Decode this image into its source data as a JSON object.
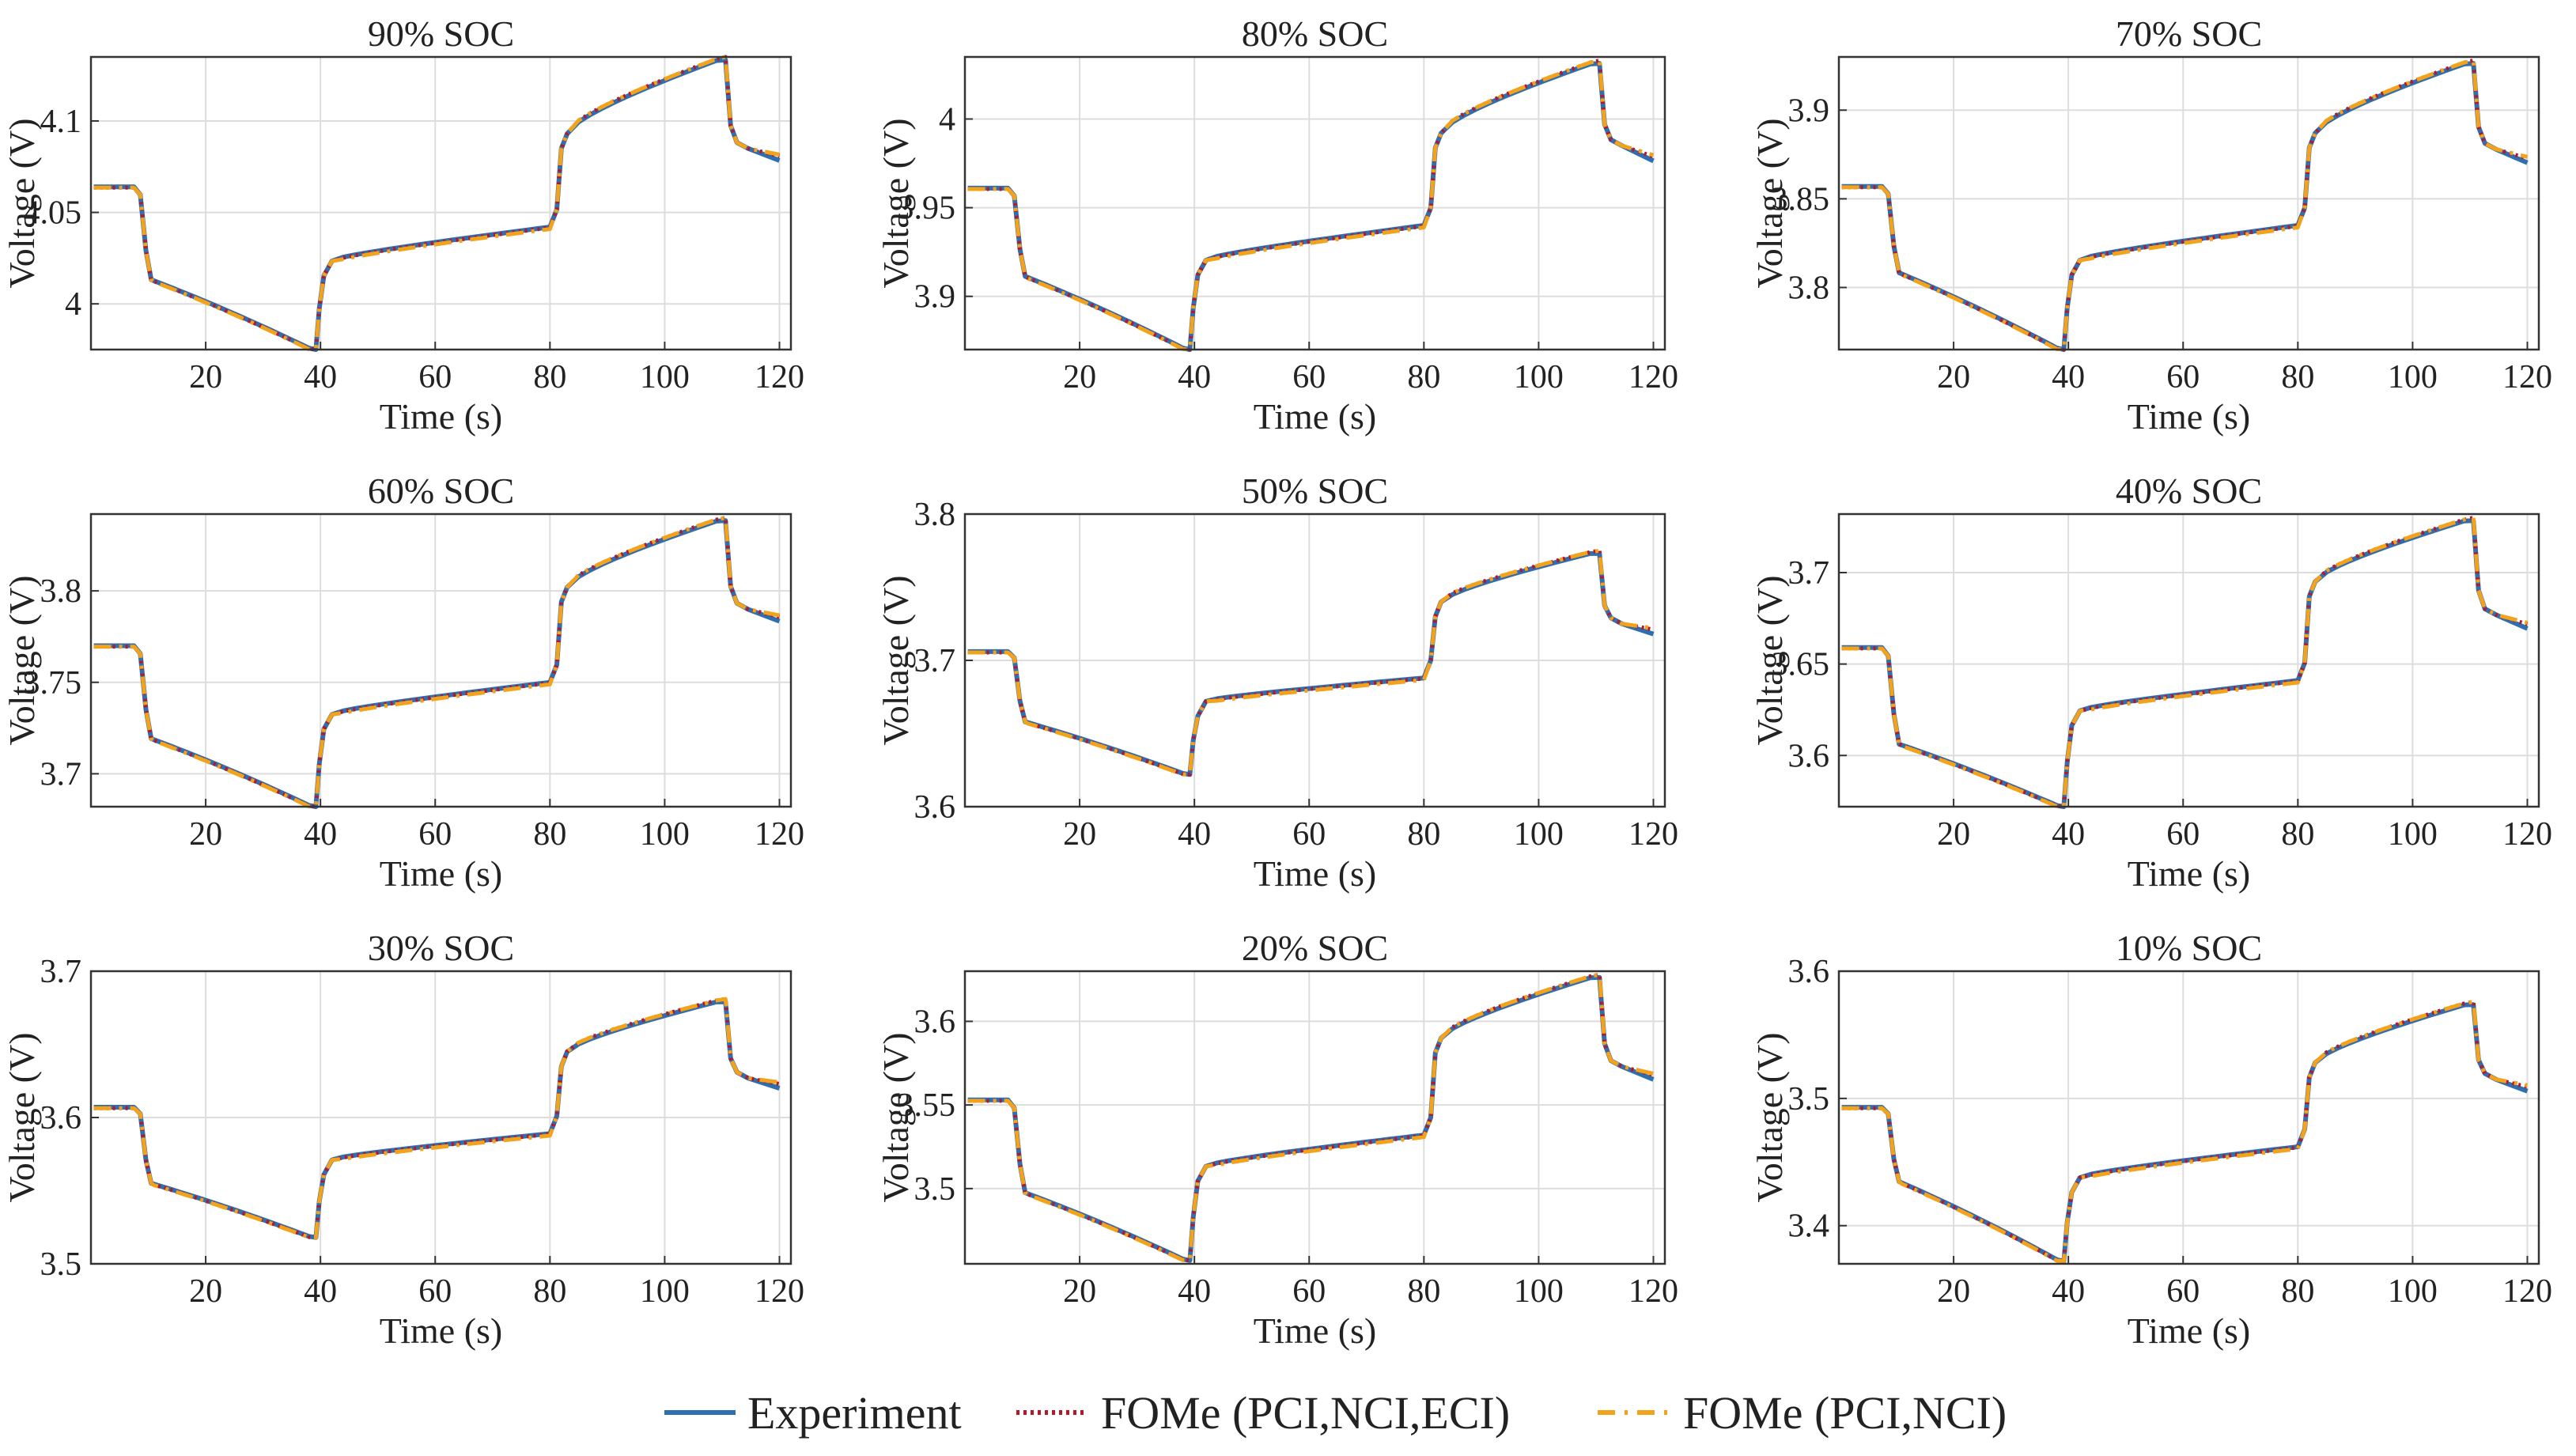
{
  "colors": {
    "experiment": "#2f6fb0",
    "fome_full": "#b5172b",
    "fome_partial": "#f2a31b",
    "grid": "#dddddd",
    "axis": "#333333"
  },
  "legend": {
    "items": [
      {
        "key": "experiment",
        "label": "Experiment"
      },
      {
        "key": "fome_full",
        "label": "FOMe (PCI,NCI,ECI)"
      },
      {
        "key": "fome_partial",
        "label": "FOMe (PCI,NCI)"
      }
    ]
  },
  "chart_data": [
    {
      "type": "line",
      "title": "90% SOC",
      "xlabel": "Time (s)",
      "ylabel": "Voltage (V)",
      "xlim": [
        0,
        122
      ],
      "ylim": [
        3.975,
        4.135
      ],
      "xticks": [
        20,
        40,
        60,
        80,
        100,
        120
      ],
      "yticks": [
        4,
        4.05,
        4.1
      ],
      "yticklabels": [
        "4",
        "4.05",
        "4.1"
      ],
      "v0": 4.064,
      "v1": 4.01,
      "v2": 3.975,
      "v3": 4.025,
      "v4": 4.042,
      "v5": 4.093,
      "v6": 4.135,
      "v7": 4.085,
      "v8": 4.08
    },
    {
      "type": "line",
      "title": "80% SOC",
      "xlabel": "Time (s)",
      "ylabel": "Voltage (V)",
      "xlim": [
        0,
        122
      ],
      "ylim": [
        3.87,
        4.035
      ],
      "xticks": [
        20,
        40,
        60,
        80,
        100,
        120
      ],
      "yticks": [
        3.9,
        3.95,
        4
      ],
      "yticklabels": [
        "3.9",
        "3.95",
        "4"
      ],
      "v0": 3.961,
      "v1": 3.908,
      "v2": 3.87,
      "v3": 3.922,
      "v4": 3.94,
      "v5": 3.992,
      "v6": 4.033,
      "v7": 3.985,
      "v8": 3.978
    },
    {
      "type": "line",
      "title": "70% SOC",
      "xlabel": "Time (s)",
      "ylabel": "Voltage (V)",
      "xlim": [
        0,
        122
      ],
      "ylim": [
        3.765,
        3.93
      ],
      "xticks": [
        20,
        40,
        60,
        80,
        100,
        120
      ],
      "yticks": [
        3.8,
        3.85,
        3.9
      ],
      "yticklabels": [
        "3.8",
        "3.85",
        "3.9"
      ],
      "v0": 3.857,
      "v1": 3.805,
      "v2": 3.765,
      "v3": 3.817,
      "v4": 3.835,
      "v5": 3.887,
      "v6": 3.928,
      "v7": 3.878,
      "v8": 3.872
    },
    {
      "type": "line",
      "title": "60% SOC",
      "xlabel": "Time (s)",
      "ylabel": "Voltage (V)",
      "xlim": [
        0,
        122
      ],
      "ylim": [
        3.682,
        3.842
      ],
      "xticks": [
        20,
        40,
        60,
        80,
        100,
        120
      ],
      "yticks": [
        3.7,
        3.75,
        3.8
      ],
      "yticklabels": [
        "3.7",
        "3.75",
        "3.8"
      ],
      "v0": 3.77,
      "v1": 3.716,
      "v2": 3.682,
      "v3": 3.734,
      "v4": 3.75,
      "v5": 3.802,
      "v6": 3.84,
      "v7": 3.79,
      "v8": 3.785
    },
    {
      "type": "line",
      "title": "50% SOC",
      "xlabel": "Time (s)",
      "ylabel": "Voltage (V)",
      "xlim": [
        0,
        122
      ],
      "ylim": [
        3.6,
        3.8
      ],
      "xticks": [
        20,
        40,
        60,
        80,
        100,
        120
      ],
      "yticks": [
        3.6,
        3.7,
        3.8
      ],
      "yticklabels": [
        "3.6",
        "3.7",
        "3.8"
      ],
      "v0": 3.706,
      "v1": 3.654,
      "v2": 3.622,
      "v3": 3.674,
      "v4": 3.688,
      "v5": 3.74,
      "v6": 3.775,
      "v7": 3.725,
      "v8": 3.72
    },
    {
      "type": "line",
      "title": "40% SOC",
      "xlabel": "Time (s)",
      "ylabel": "Voltage (V)",
      "xlim": [
        0,
        122
      ],
      "ylim": [
        3.572,
        3.732
      ],
      "xticks": [
        20,
        40,
        60,
        80,
        100,
        120
      ],
      "yticks": [
        3.6,
        3.65,
        3.7
      ],
      "yticklabels": [
        "3.6",
        "3.65",
        "3.7"
      ],
      "v0": 3.659,
      "v1": 3.603,
      "v2": 3.572,
      "v3": 3.626,
      "v4": 3.641,
      "v5": 3.695,
      "v6": 3.73,
      "v7": 3.677,
      "v8": 3.671
    },
    {
      "type": "line",
      "title": "30% SOC",
      "xlabel": "Time (s)",
      "ylabel": "Voltage (V)",
      "xlim": [
        0,
        122
      ],
      "ylim": [
        3.5,
        3.7
      ],
      "xticks": [
        20,
        40,
        60,
        80,
        100,
        120
      ],
      "yticks": [
        3.5,
        3.6,
        3.7
      ],
      "yticklabels": [
        "3.5",
        "3.6",
        "3.7"
      ],
      "v0": 3.607,
      "v1": 3.551,
      "v2": 3.518,
      "v3": 3.573,
      "v4": 3.589,
      "v5": 3.645,
      "v6": 3.681,
      "v7": 3.627,
      "v8": 3.622
    },
    {
      "type": "line",
      "title": "20% SOC",
      "xlabel": "Time (s)",
      "ylabel": "Voltage (V)",
      "xlim": [
        0,
        122
      ],
      "ylim": [
        3.455,
        3.63
      ],
      "xticks": [
        20,
        40,
        60,
        80,
        100,
        120
      ],
      "yticks": [
        3.5,
        3.55,
        3.6
      ],
      "yticklabels": [
        "3.5",
        "3.55",
        "3.6"
      ],
      "v0": 3.553,
      "v1": 3.494,
      "v2": 3.457,
      "v3": 3.515,
      "v4": 3.532,
      "v5": 3.59,
      "v6": 3.628,
      "v7": 3.573,
      "v8": 3.567
    },
    {
      "type": "line",
      "title": "10% SOC",
      "xlabel": "Time (s)",
      "ylabel": "Voltage (V)",
      "xlim": [
        0,
        122
      ],
      "ylim": [
        3.37,
        3.6
      ],
      "xticks": [
        20,
        40,
        60,
        80,
        100,
        120
      ],
      "yticks": [
        3.4,
        3.5,
        3.6
      ],
      "yticklabels": [
        "3.4",
        "3.5",
        "3.6"
      ],
      "v0": 3.493,
      "v1": 3.43,
      "v2": 3.372,
      "v3": 3.44,
      "v4": 3.462,
      "v5": 3.528,
      "v6": 3.576,
      "v7": 3.515,
      "v8": 3.508
    }
  ]
}
